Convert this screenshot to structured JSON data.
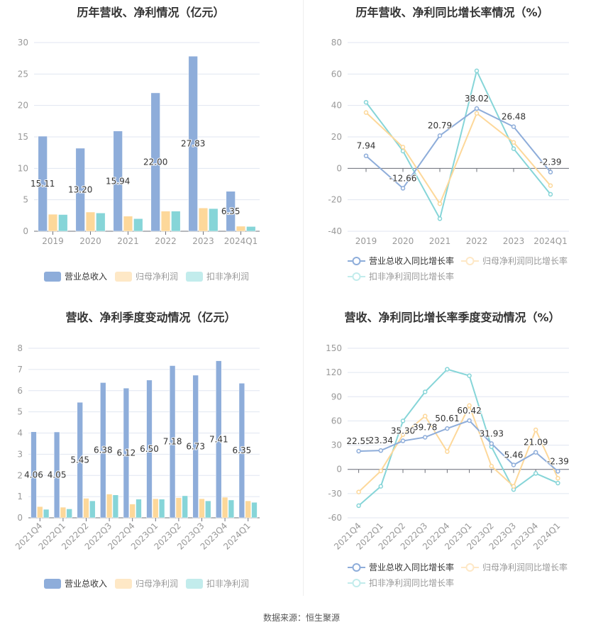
{
  "colors": {
    "revenue": "#8eadda",
    "parent_profit": "#fdd89a",
    "deducted_profit": "#86d5d8",
    "revenue_legend": "#8eadda",
    "parent_legend": "#fee8c6",
    "deducted_legend": "#c2ecec"
  },
  "footer": {
    "source": "数据来源：恒生聚源"
  },
  "chart_data": [
    {
      "type": "bar",
      "title": "历年营收、净利情况（亿元）",
      "categories": [
        "2019",
        "2020",
        "2021",
        "2022",
        "2023",
        "2024Q1"
      ],
      "ylim": [
        0,
        30
      ],
      "yticks": [
        0,
        5,
        10,
        15,
        20,
        25,
        30
      ],
      "grid": true,
      "legend": "bottom",
      "series": [
        {
          "name": "营业总收入",
          "values": [
            15.11,
            13.2,
            15.94,
            22.0,
            27.83,
            6.35
          ],
          "labels": [
            "15.11",
            "13.20",
            "15.94",
            "22.00",
            "27.83",
            "6.35"
          ]
        },
        {
          "name": "归母净利润",
          "values": [
            2.7,
            3.05,
            2.4,
            3.2,
            3.7,
            0.8
          ]
        },
        {
          "name": "扣非净利润",
          "values": [
            2.65,
            2.9,
            2.0,
            3.2,
            3.6,
            0.75
          ]
        }
      ]
    },
    {
      "type": "line",
      "title": "历年营收、净利同比增长率情况（%）",
      "categories": [
        "2019",
        "2020",
        "2021",
        "2022",
        "2023",
        "2024Q1"
      ],
      "ylim": [
        -40,
        80
      ],
      "yticks": [
        -40,
        -20,
        0,
        20,
        40,
        60,
        80
      ],
      "grid": true,
      "legend": "bottom",
      "series": [
        {
          "name": "营业总收入同比增长率",
          "values": [
            7.94,
            -12.66,
            20.79,
            38.02,
            26.48,
            -2.39
          ],
          "labels": [
            "7.94",
            "-12.66",
            "20.79",
            "38.02",
            "26.48",
            "-2.39"
          ]
        },
        {
          "name": "归母净利润同比增长率",
          "values": [
            35.5,
            13.5,
            -22.5,
            35,
            16.5,
            -11
          ]
        },
        {
          "name": "扣非净利润同比增长率",
          "values": [
            42,
            11,
            -32,
            62,
            12.5,
            -16.5
          ]
        }
      ]
    },
    {
      "type": "bar",
      "title": "营收、净利季度变动情况（亿元）",
      "categories": [
        "2021Q4",
        "2022Q1",
        "2022Q2",
        "2022Q3",
        "2022Q4",
        "2023Q1",
        "2023Q2",
        "2023Q3",
        "2023Q4",
        "2024Q1"
      ],
      "ylim": [
        0,
        8
      ],
      "yticks": [
        0,
        1,
        2,
        3,
        4,
        5,
        6,
        7,
        8
      ],
      "grid": true,
      "legend": "bottom",
      "series": [
        {
          "name": "营业总收入",
          "values": [
            4.06,
            4.05,
            5.45,
            6.38,
            6.12,
            6.5,
            7.18,
            6.73,
            7.41,
            6.35
          ],
          "labels": [
            "4.06",
            "4.05",
            "5.45",
            "6.38",
            "6.12",
            "6.50",
            "7.18",
            "6.73",
            "7.41",
            "6.35"
          ]
        },
        {
          "name": "归母净利润",
          "values": [
            0.53,
            0.5,
            0.92,
            1.12,
            0.65,
            0.9,
            0.95,
            0.9,
            0.97,
            0.8
          ]
        },
        {
          "name": "扣非净利润",
          "values": [
            0.4,
            0.42,
            0.8,
            1.08,
            0.88,
            0.88,
            1.04,
            0.8,
            0.84,
            0.73
          ]
        }
      ]
    },
    {
      "type": "line",
      "title": "营收、净利同比增长率季度变动情况（%）",
      "categories": [
        "2021Q4",
        "2022Q1",
        "2022Q2",
        "2022Q3",
        "2022Q4",
        "2023Q1",
        "2023Q2",
        "2023Q3",
        "2023Q4",
        "2024Q1"
      ],
      "ylim": [
        -60,
        150
      ],
      "yticks": [
        -60,
        -30,
        0,
        30,
        60,
        90,
        120,
        150
      ],
      "grid": true,
      "legend": "bottom",
      "series": [
        {
          "name": "营业总收入同比增长率",
          "values": [
            22.55,
            23.34,
            35.3,
            39.78,
            50.61,
            60.42,
            31.93,
            5.46,
            21.09,
            -2.39
          ],
          "labels": [
            "22.55",
            "23.34",
            "35.30",
            "39.78",
            "50.61",
            "60.42",
            "31.93",
            "5.46",
            "21.09",
            "-2.39"
          ]
        },
        {
          "name": "归母净利润同比增长率",
          "values": [
            -28,
            -2,
            43,
            66,
            22,
            79,
            4,
            -21,
            49,
            -11
          ]
        },
        {
          "name": "扣非净利润同比增长率",
          "values": [
            -45,
            -21,
            60,
            96,
            124,
            116,
            28,
            -25,
            -5,
            -17
          ]
        }
      ]
    }
  ]
}
